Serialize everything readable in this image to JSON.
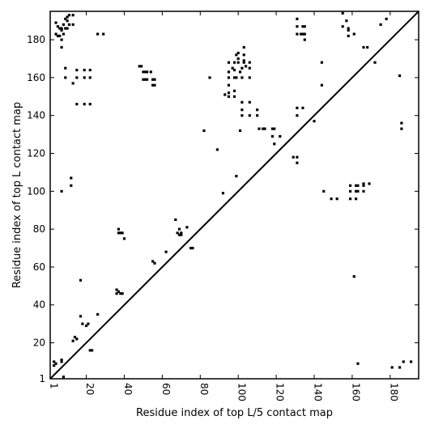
{
  "chart_data": {
    "type": "scatter",
    "title": "",
    "xlabel": "Residue index of top L/5 contact map",
    "ylabel": "Residue index of top L contact map",
    "xlim": [
      1,
      195
    ],
    "ylim": [
      1,
      195
    ],
    "x_ticks": [
      1,
      20,
      40,
      60,
      80,
      100,
      120,
      140,
      160,
      180
    ],
    "x_tick_labels": [
      "1",
      "20",
      "40",
      "60",
      "80",
      "100",
      "120",
      "140",
      "160",
      "180"
    ],
    "y_ticks": [
      1,
      20,
      40,
      60,
      80,
      100,
      120,
      140,
      160,
      180
    ],
    "y_tick_labels": [
      "1",
      "20",
      "40",
      "60",
      "80",
      "100",
      "120",
      "140",
      "160",
      "180"
    ],
    "grid": false,
    "legend": "none",
    "diagonal_line": {
      "from": [
        1,
        1
      ],
      "to": [
        195,
        195
      ]
    },
    "marker": "square",
    "marker_color": "#000000",
    "series": [
      {
        "region": "upper-left",
        "points": [
          [
            4,
            189
          ],
          [
            4,
            183
          ],
          [
            5,
            187
          ],
          [
            5,
            182
          ],
          [
            6,
            186
          ],
          [
            6,
            182
          ],
          [
            7,
            185
          ],
          [
            7,
            180
          ],
          [
            7,
            176
          ],
          [
            7,
            186
          ],
          [
            8,
            183
          ],
          [
            8,
            188
          ],
          [
            9,
            191
          ],
          [
            9,
            186
          ],
          [
            9,
            165
          ],
          [
            9,
            160
          ],
          [
            10,
            190
          ],
          [
            10,
            192
          ],
          [
            10,
            186
          ],
          [
            11,
            188
          ],
          [
            11,
            193
          ],
          [
            13,
            193
          ],
          [
            13,
            188
          ],
          [
            13,
            157
          ],
          [
            15,
            164
          ],
          [
            15,
            160
          ],
          [
            15,
            146
          ],
          [
            19,
            164
          ],
          [
            19,
            160
          ],
          [
            19,
            146
          ],
          [
            22,
            164
          ],
          [
            22,
            160
          ],
          [
            22,
            146
          ],
          [
            26,
            183
          ],
          [
            29,
            183
          ],
          [
            37,
            80
          ],
          [
            37,
            78
          ],
          [
            38,
            78
          ],
          [
            39,
            78
          ],
          [
            40,
            75
          ],
          [
            48,
            166
          ],
          [
            49,
            166
          ],
          [
            50,
            163
          ],
          [
            50,
            159
          ],
          [
            51,
            163
          ],
          [
            51,
            159
          ],
          [
            52,
            163
          ],
          [
            52,
            159
          ],
          [
            54,
            163
          ],
          [
            55,
            159
          ],
          [
            55,
            156
          ],
          [
            56,
            159
          ],
          [
            56,
            156
          ],
          [
            62,
            68
          ],
          [
            67,
            85
          ],
          [
            68,
            78
          ],
          [
            69,
            80
          ],
          [
            70,
            78
          ],
          [
            73,
            81
          ],
          [
            75,
            70
          ],
          [
            76,
            70
          ],
          [
            82,
            132
          ],
          [
            85,
            160
          ],
          [
            89,
            122
          ],
          [
            92,
            99
          ],
          [
            93,
            151
          ],
          [
            95,
            168
          ],
          [
            95,
            163
          ],
          [
            95,
            160
          ],
          [
            95,
            156
          ],
          [
            95,
            152
          ],
          [
            95,
            150
          ],
          [
            97,
            165
          ],
          [
            98,
            168
          ],
          [
            98,
            164
          ],
          [
            98,
            160
          ],
          [
            98,
            153
          ],
          [
            98,
            150
          ],
          [
            99,
            172
          ],
          [
            99,
            160
          ],
          [
            99,
            108
          ],
          [
            100,
            173
          ],
          [
            100,
            170
          ],
          [
            100,
            168
          ],
          [
            101,
            163
          ],
          [
            101,
            132
          ],
          [
            102,
            165
          ],
          [
            102,
            160
          ],
          [
            102,
            147
          ],
          [
            102,
            143
          ],
          [
            102,
            140
          ],
          [
            103,
            176
          ],
          [
            103,
            172
          ],
          [
            103,
            169
          ],
          [
            103,
            168
          ],
          [
            104,
            166
          ],
          [
            106,
            168
          ],
          [
            106,
            165
          ],
          [
            106,
            160
          ],
          [
            106,
            147
          ],
          [
            106,
            140
          ],
          [
            110,
            143
          ],
          [
            110,
            140
          ],
          [
            111,
            133
          ],
          [
            113,
            133
          ],
          [
            114,
            133
          ],
          [
            118,
            133
          ],
          [
            118,
            129
          ],
          [
            119,
            133
          ],
          [
            119,
            125
          ],
          [
            122,
            129
          ],
          [
            129,
            118
          ],
          [
            131,
            191
          ],
          [
            131,
            187
          ],
          [
            131,
            183
          ],
          [
            131,
            144
          ],
          [
            131,
            140
          ],
          [
            131,
            115
          ],
          [
            131,
            118
          ],
          [
            133,
            183
          ],
          [
            134,
            187
          ],
          [
            134,
            183
          ],
          [
            134,
            144
          ],
          [
            135,
            183
          ],
          [
            135,
            187
          ],
          [
            135,
            180
          ],
          [
            140,
            137
          ],
          [
            144,
            168
          ],
          [
            144,
            156
          ],
          [
            145,
            100
          ],
          [
            149,
            96
          ],
          [
            152,
            96
          ],
          [
            155,
            194
          ],
          [
            155,
            187
          ],
          [
            157,
            190
          ],
          [
            158,
            186
          ],
          [
            158,
            185
          ],
          [
            158,
            182
          ],
          [
            159,
            103
          ],
          [
            159,
            100
          ],
          [
            159,
            96
          ],
          [
            161,
            183
          ],
          [
            162,
            103
          ],
          [
            162,
            100
          ],
          [
            162,
            96
          ],
          [
            163,
            103
          ],
          [
            163,
            100
          ],
          [
            166,
            104
          ],
          [
            166,
            103
          ],
          [
            166,
            100
          ],
          [
            166,
            176
          ],
          [
            168,
            176
          ],
          [
            169,
            104
          ],
          [
            172,
            168
          ],
          [
            175,
            188
          ],
          [
            178,
            191
          ],
          [
            185,
            161
          ],
          [
            186,
            136
          ],
          [
            186,
            133
          ]
        ]
      },
      {
        "region": "lower-right",
        "points": [
          [
            3,
            10
          ],
          [
            3,
            8
          ],
          [
            4,
            9
          ],
          [
            7,
            11
          ],
          [
            7,
            10
          ],
          [
            8,
            2
          ],
          [
            12,
            103
          ],
          [
            12,
            107
          ],
          [
            7,
            100
          ],
          [
            13,
            21
          ],
          [
            14,
            23
          ],
          [
            15,
            22
          ],
          [
            17,
            53
          ],
          [
            17,
            34
          ],
          [
            18,
            30
          ],
          [
            20,
            29
          ],
          [
            21,
            30
          ],
          [
            22,
            16
          ],
          [
            23,
            16
          ],
          [
            26,
            35
          ],
          [
            36,
            48
          ],
          [
            36,
            46
          ],
          [
            37,
            47
          ],
          [
            38,
            46
          ],
          [
            39,
            46
          ],
          [
            55,
            63
          ],
          [
            56,
            62
          ],
          [
            69,
            77
          ],
          [
            70,
            77
          ],
          [
            161,
            55
          ],
          [
            163,
            9
          ],
          [
            181,
            7
          ],
          [
            185,
            7
          ],
          [
            187,
            10
          ],
          [
            191,
            10
          ]
        ]
      }
    ]
  }
}
